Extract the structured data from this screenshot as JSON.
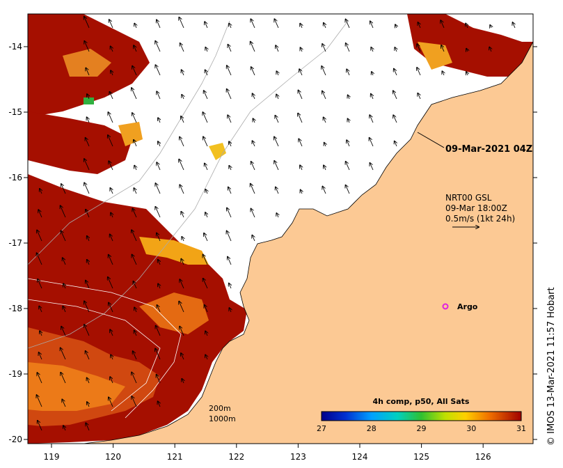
{
  "map": {
    "x_ticks": [
      "119",
      "120",
      "121",
      "122",
      "123",
      "124",
      "125",
      "126"
    ],
    "y_ticks": [
      "-14",
      "-15",
      "-16",
      "-17",
      "-18",
      "-19",
      "-20"
    ],
    "timestamp_label": "09-Mar-2021 04Z",
    "current_info": {
      "line1": "NRT00 GSL",
      "line2": "09-Mar 18:00Z",
      "line3": "0.5m/s (1kt 24h)"
    },
    "argo_label": "Argo",
    "depth_legend": {
      "line1": "200m",
      "line2": "1000m"
    },
    "colorbar": {
      "title": "4h comp, p50, All Sats",
      "ticks": [
        "27",
        "28",
        "29",
        "30",
        "31"
      ],
      "min": 27,
      "max": 31
    },
    "credit": "© IMOS 13-Mar-2021 11:57 Hobart",
    "colors": {
      "land": "#fcc994",
      "sst_hot": "#a50f00",
      "sst_warm": "#d8420a",
      "sst_mid": "#f08a14",
      "argo": "#e020e0"
    }
  }
}
